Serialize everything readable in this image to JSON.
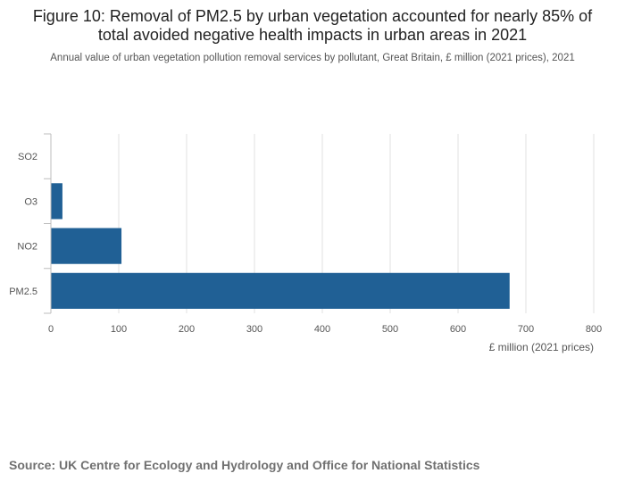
{
  "chart_data": {
    "type": "bar",
    "orientation": "horizontal",
    "title": "Figure 10: Removal of PM2.5 by urban vegetation accounted for nearly 85% of total avoided negative health impacts in urban areas in 2021",
    "subtitle": "Annual value of urban vegetation pollution removal services by pollutant, Great Britain, £ million (2021 prices), 2021",
    "categories": [
      "SO2",
      "O3",
      "NO2",
      "PM2.5"
    ],
    "values": [
      0.3,
      17,
      104,
      676
    ],
    "xlabel": "£ million (2021 prices)",
    "ylabel": "",
    "xlim": [
      0,
      800
    ],
    "xticks": [
      0,
      100,
      200,
      300,
      400,
      500,
      600,
      700,
      800
    ],
    "grid": true,
    "legend": "none",
    "bar_color": "#206095"
  },
  "source": "Source: UK Centre for Ecology and Hydrology and Office for National Statistics"
}
